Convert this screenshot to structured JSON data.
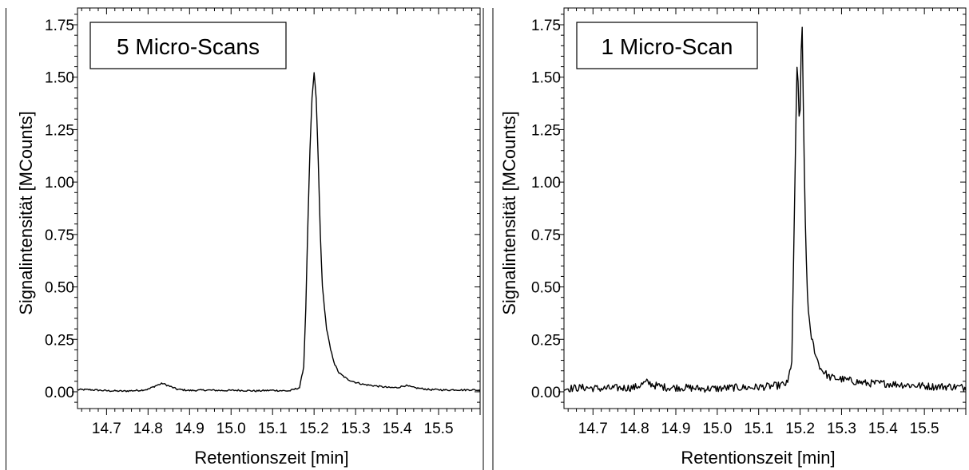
{
  "chart_data": [
    {
      "type": "line",
      "title": "",
      "legend_box": "5 Micro-Scans",
      "xlabel": "Retentionszeit [min]",
      "ylabel": "Signalintensität [MCounts]",
      "xlim": [
        14.63,
        15.6
      ],
      "ylim": [
        -0.08,
        1.83
      ],
      "xticks": [
        "14.7",
        "14.8",
        "14.9",
        "15.0",
        "15.1",
        "15.2",
        "15.3",
        "15.4",
        "15.5"
      ],
      "yticks": [
        "0.00",
        "0.25",
        "0.50",
        "0.75",
        "1.00",
        "1.25",
        "1.50",
        "1.75"
      ],
      "grid": false,
      "noise": 0.004,
      "series": [
        {
          "x": [
            14.63,
            14.66,
            14.7,
            14.74,
            14.78,
            14.8,
            14.82,
            14.835,
            14.85,
            14.87,
            14.9,
            14.94,
            14.98,
            15.02,
            15.06,
            15.1,
            15.14,
            15.165,
            15.175,
            15.18,
            15.185,
            15.19,
            15.195,
            15.2,
            15.205,
            15.21,
            15.215,
            15.22,
            15.23,
            15.24,
            15.25,
            15.26,
            15.28,
            15.3,
            15.32,
            15.34,
            15.36,
            15.38,
            15.4,
            15.42,
            15.44,
            15.46,
            15.48,
            15.5,
            15.52,
            15.54,
            15.56,
            15.58,
            15.6
          ],
          "y": [
            0.01,
            0.01,
            0.005,
            0.003,
            0.007,
            0.012,
            0.03,
            0.04,
            0.028,
            0.012,
            0.006,
            0.008,
            0.006,
            0.007,
            0.004,
            0.007,
            0.004,
            0.02,
            0.12,
            0.4,
            0.8,
            1.15,
            1.4,
            1.52,
            1.4,
            1.1,
            0.75,
            0.5,
            0.3,
            0.2,
            0.13,
            0.09,
            0.06,
            0.045,
            0.035,
            0.03,
            0.025,
            0.02,
            0.02,
            0.03,
            0.02,
            0.015,
            0.01,
            0.01,
            0.008,
            0.01,
            0.008,
            0.01,
            0.006
          ]
        }
      ]
    },
    {
      "type": "line",
      "title": "",
      "legend_box": "1 Micro-Scan",
      "xlabel": "Retentionszeit [min]",
      "ylabel": "Signalintensität [MCounts]",
      "xlim": [
        14.63,
        15.6
      ],
      "ylim": [
        -0.08,
        1.83
      ],
      "xticks": [
        "14.7",
        "14.8",
        "14.9",
        "15.0",
        "15.1",
        "15.2",
        "15.3",
        "15.4",
        "15.5"
      ],
      "yticks": [
        "0.00",
        "0.25",
        "0.50",
        "0.75",
        "1.00",
        "1.25",
        "1.50",
        "1.75"
      ],
      "grid": false,
      "noise": 0.018,
      "series": [
        {
          "x": [
            14.63,
            14.68,
            14.72,
            14.76,
            14.8,
            14.83,
            14.85,
            14.88,
            14.92,
            14.96,
            15.0,
            15.04,
            15.08,
            15.12,
            15.15,
            15.17,
            15.18,
            15.185,
            15.19,
            15.193,
            15.196,
            15.199,
            15.202,
            15.205,
            15.208,
            15.212,
            15.216,
            15.22,
            15.225,
            15.23,
            15.235,
            15.24,
            15.25,
            15.27,
            15.3,
            15.33,
            15.36,
            15.4,
            15.44,
            15.48,
            15.52,
            15.56,
            15.6
          ],
          "y": [
            0.015,
            0.02,
            0.015,
            0.018,
            0.02,
            0.045,
            0.03,
            0.02,
            0.02,
            0.015,
            0.015,
            0.02,
            0.02,
            0.025,
            0.03,
            0.04,
            0.15,
            0.7,
            1.3,
            1.6,
            1.4,
            1.2,
            1.6,
            1.75,
            1.3,
            0.85,
            0.55,
            0.38,
            0.28,
            0.24,
            0.2,
            0.16,
            0.11,
            0.07,
            0.06,
            0.05,
            0.04,
            0.04,
            0.035,
            0.03,
            0.025,
            0.025,
            0.02
          ]
        }
      ]
    }
  ]
}
